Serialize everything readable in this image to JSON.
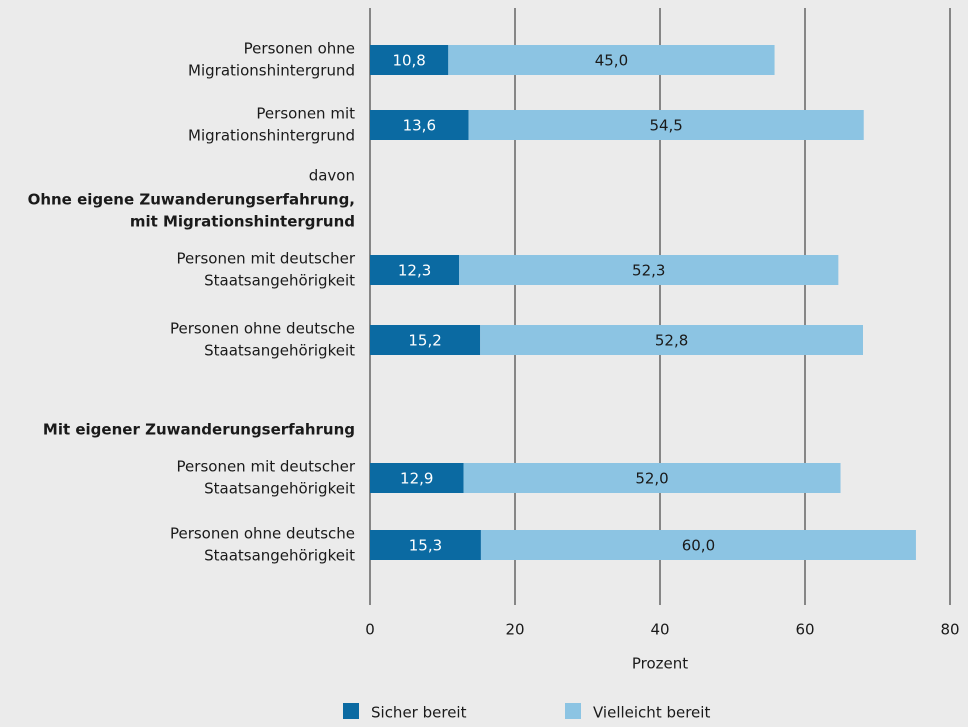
{
  "chart_data": {
    "type": "stacked-barh",
    "categories": [
      [
        "Personen ohne",
        "Migrationshintergrund"
      ],
      [
        "Personen mit",
        "Migrationshintergrund"
      ],
      [
        "davon"
      ],
      [
        "Ohne eigene Zuwanderungserfahrung,",
        "mit Migrationshintergrund"
      ],
      [
        "Personen mit deutscher",
        "Staatsangehörigkeit"
      ],
      [
        "Personen ohne deutsche",
        "Staatsangehörigkeit"
      ],
      [
        "Mit eigener Zuwanderungserfahrung"
      ],
      [
        "Personen mit deutscher",
        "Staatsangehörigkeit"
      ],
      [
        "Personen ohne deutsche",
        "Staatsangehörigkeit"
      ]
    ],
    "category_bold": [
      false,
      false,
      false,
      true,
      false,
      false,
      true,
      false,
      false
    ],
    "series": [
      {
        "name": "Sicher bereit",
        "color": "#0b6aa2",
        "label_color": "#ffffff",
        "values": [
          10.8,
          13.6,
          null,
          null,
          12.3,
          15.2,
          null,
          12.9,
          15.3
        ],
        "value_labels": [
          "10,8",
          "13,6",
          null,
          null,
          "12,3",
          "15,2",
          null,
          "12,9",
          "15,3"
        ]
      },
      {
        "name": "Vielleicht bereit",
        "color": "#8cc4e3",
        "label_color": "#1a1a1a",
        "values": [
          45.0,
          54.5,
          null,
          null,
          52.3,
          52.8,
          null,
          52.0,
          60.0
        ],
        "value_labels": [
          "45,0",
          "54,5",
          null,
          null,
          "52,3",
          "52,8",
          null,
          "52,0",
          "60,0"
        ]
      }
    ],
    "xlabel": "Prozent",
    "xlim": [
      0,
      80
    ],
    "xticks": [
      0,
      20,
      40,
      60,
      80
    ],
    "grid": true
  }
}
